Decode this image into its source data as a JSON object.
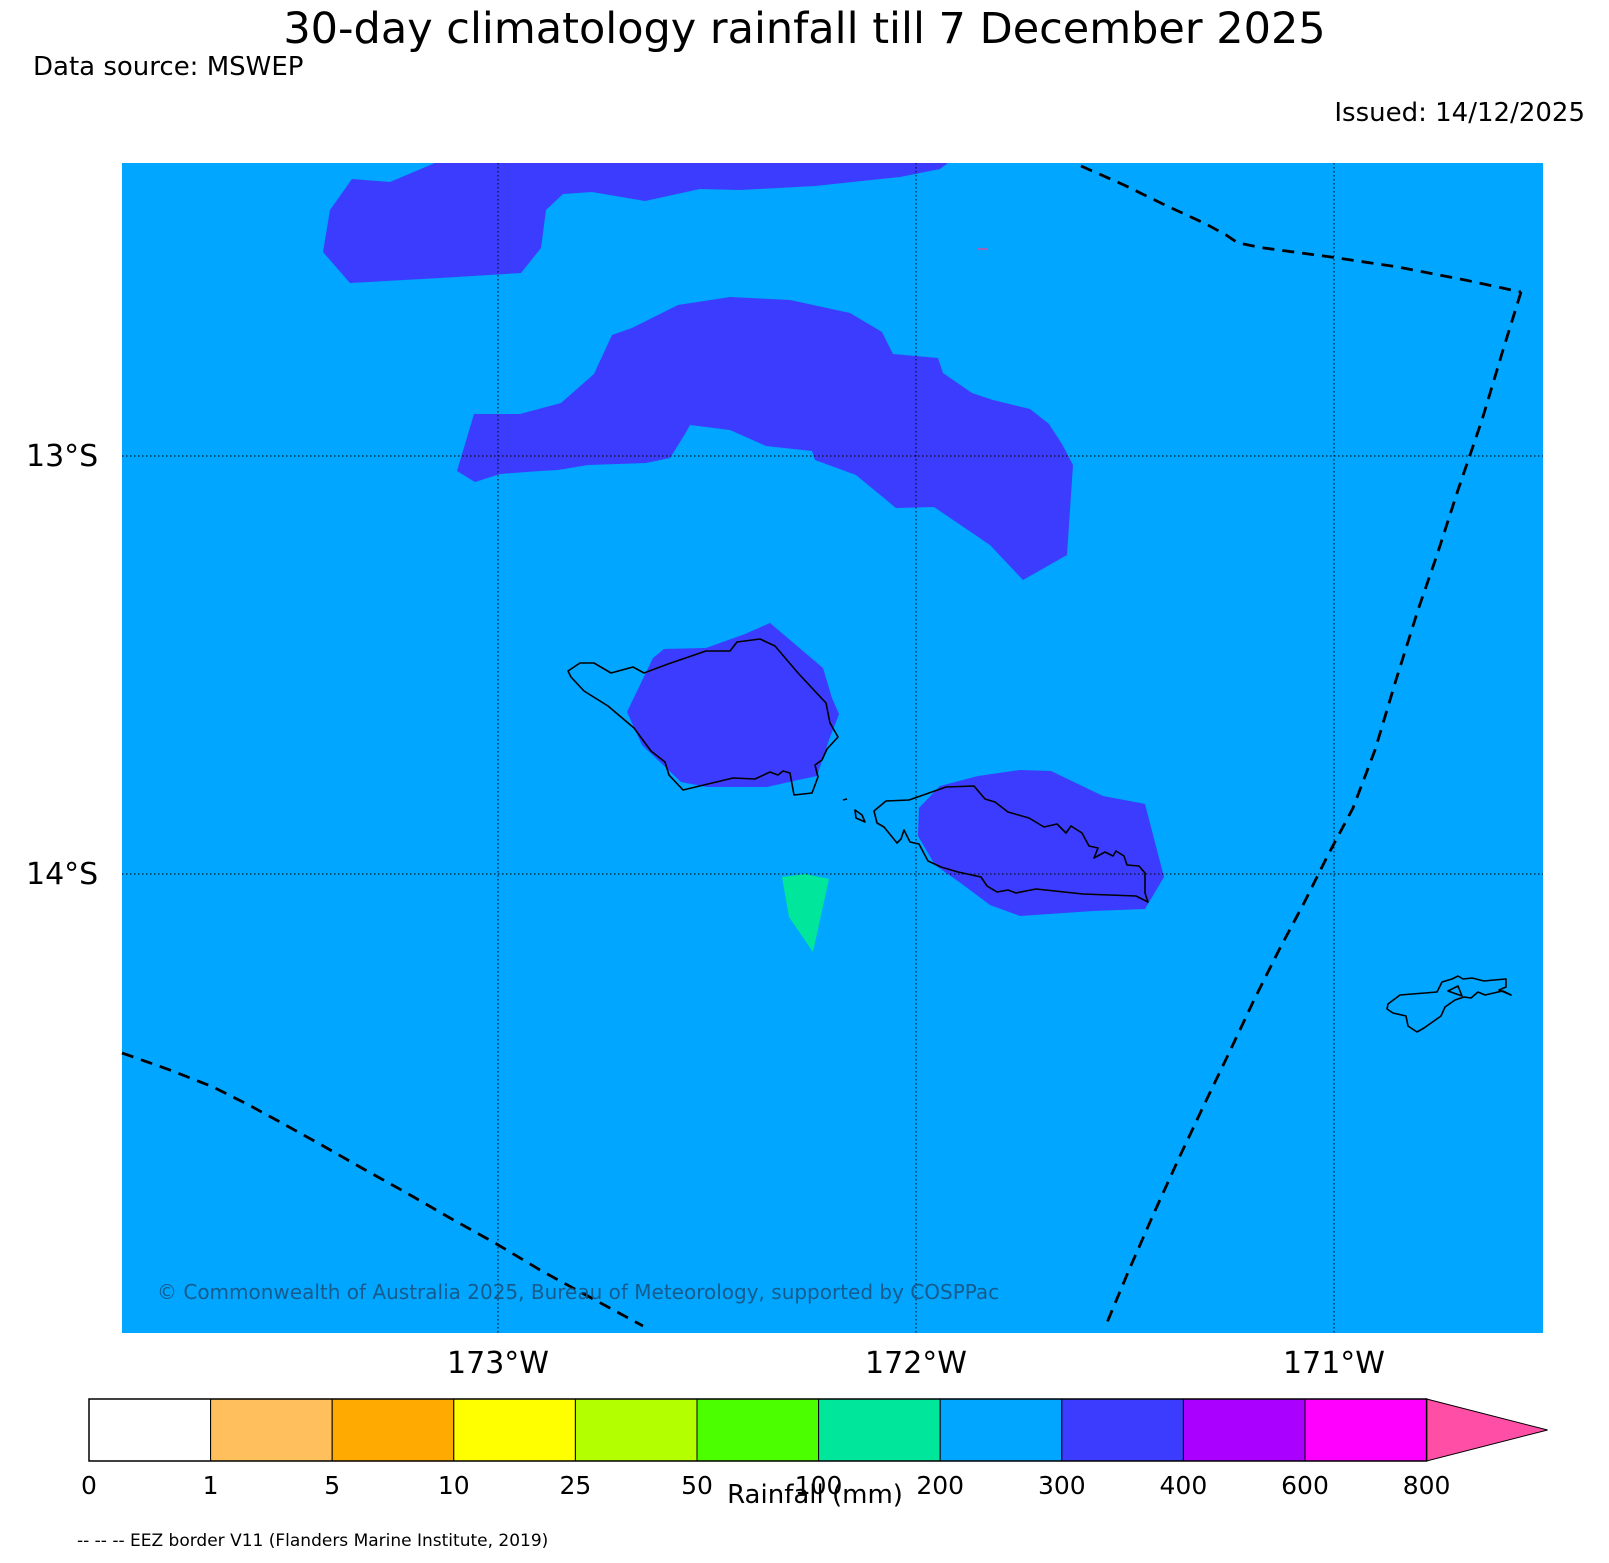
{
  "header": {
    "title": "30-day climatology rainfall till 7 December 2025",
    "source": "Data source: MSWEP",
    "issued": "Issued: 14/12/2025"
  },
  "map": {
    "background_color": "#00a6ff",
    "lat_labels": [
      "13°S",
      "14°S"
    ],
    "lon_labels": [
      "173°W",
      "172°W",
      "171°W"
    ],
    "copyright": "© Commonwealth of Australia 2025, Bureau of Meteorology, supported by COSPPac",
    "layers": [
      "rainfall-contours",
      "coastline",
      "eez-border",
      "graticule"
    ]
  },
  "colorbar": {
    "title": "Rainfall (mm)",
    "ticks": [
      "0",
      "1",
      "5",
      "10",
      "25",
      "50",
      "100",
      "200",
      "300",
      "400",
      "600",
      "800"
    ],
    "colors": [
      "#ffffff",
      "#ffbf5c",
      "#ffaa00",
      "#ffff00",
      "#b3ff00",
      "#4cff00",
      "#00e69a",
      "#00a6ff",
      "#3c3cff",
      "#aa00ff",
      "#ff00ff"
    ],
    "extend_color": "#ff4ea6"
  },
  "footer": {
    "eez_note": "-- -- -- EEZ border V11 (Flanders Marine Institute, 2019)"
  }
}
